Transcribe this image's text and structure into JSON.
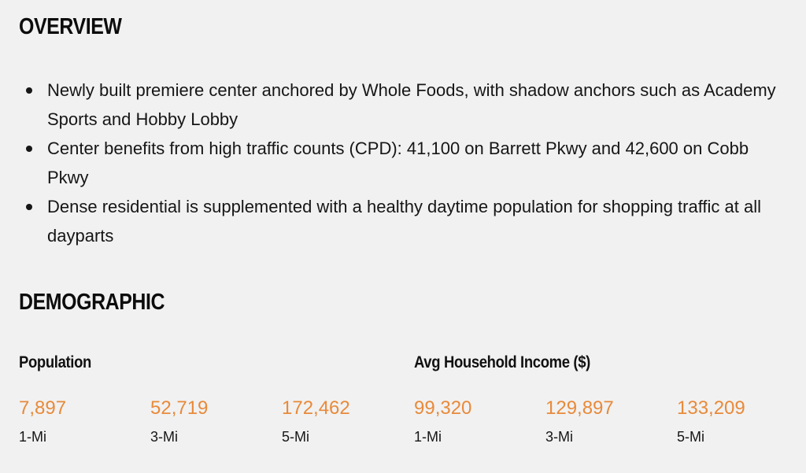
{
  "overview": {
    "title": "OVERVIEW",
    "bullets": [
      "Newly built premiere center anchored by Whole Foods, with shadow anchors such as Academy Sports and Hobby Lobby",
      "Center benefits from high traffic counts (CPD): 41,100 on Barrett Pkwy and 42,600 on Cobb Pkwy",
      "Dense residential is supplemented with a healthy daytime population for shopping traffic at all dayparts"
    ]
  },
  "demographic": {
    "title": "DEMOGRAPHIC",
    "population": {
      "label": "Population",
      "stats": [
        {
          "value": "7,897",
          "radius": "1-Mi"
        },
        {
          "value": "52,719",
          "radius": "3-Mi"
        },
        {
          "value": "172,462",
          "radius": "5-Mi"
        }
      ]
    },
    "income": {
      "label": "Avg Household Income ($)",
      "stats": [
        {
          "value": "99,320",
          "radius": "1-Mi"
        },
        {
          "value": "129,897",
          "radius": "3-Mi"
        },
        {
          "value": "133,209",
          "radius": "5-Mi"
        }
      ]
    }
  },
  "colors": {
    "background": "#f1f1f1",
    "accent": "#e88a3a",
    "text": "#111111"
  }
}
